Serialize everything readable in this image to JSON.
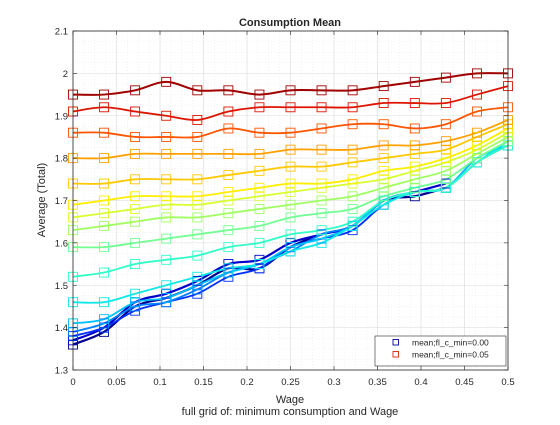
{
  "figure": {
    "footer": "full grid of: minimum consumption and Wage"
  },
  "chart_data": {
    "type": "line",
    "title": "Consumption Mean",
    "xlabel": "Wage",
    "ylabel": "Average (Total)",
    "xlim": [
      0,
      0.5
    ],
    "ylim": [
      1.3,
      2.1
    ],
    "xticks": [
      0,
      0.05,
      0.1,
      0.15,
      0.2,
      0.25,
      0.3,
      0.35,
      0.4,
      0.45,
      0.5
    ],
    "xtick_labels": [
      "0",
      "0.05",
      "0.1",
      "0.15",
      "0.2",
      "0.25",
      "0.3",
      "0.35",
      "0.4",
      "0.45",
      "0.5"
    ],
    "yticks": [
      1.3,
      1.4,
      1.5,
      1.6,
      1.7,
      1.8,
      1.9,
      2.0,
      2.1
    ],
    "ytick_labels": [
      "1.3",
      "1.4",
      "1.5",
      "1.6",
      "1.7",
      "1.8",
      "1.9",
      "2",
      "2.1"
    ],
    "grid": true,
    "minor_grid": true,
    "legend_position": "bottom-right",
    "legend": [
      {
        "label": "mean;fl_c_min=0.00",
        "color": "#0000aa"
      },
      {
        "label": "mean;fl_c_min=0.05",
        "color": "#dd2200"
      }
    ],
    "x": [
      0,
      0.0357,
      0.0714,
      0.1071,
      0.1429,
      0.1786,
      0.2143,
      0.25,
      0.2857,
      0.3214,
      0.3571,
      0.3929,
      0.4286,
      0.4643,
      0.5
    ],
    "series": [
      {
        "color": "#00008f",
        "width": 2.2,
        "values": [
          1.36,
          1.39,
          1.45,
          1.47,
          1.5,
          1.54,
          1.54,
          1.59,
          1.62,
          1.64,
          1.7,
          1.71,
          1.73,
          null,
          null
        ]
      },
      {
        "color": "#0000cc",
        "width": 2.2,
        "values": [
          1.37,
          1.4,
          1.46,
          1.48,
          1.51,
          1.55,
          1.56,
          1.6,
          1.62,
          1.64,
          1.7,
          1.72,
          1.74,
          null,
          null
        ]
      },
      {
        "color": "#0030ff",
        "width": 1.8,
        "values": [
          1.38,
          1.4,
          1.44,
          1.46,
          1.48,
          1.52,
          1.54,
          1.59,
          1.61,
          1.63,
          1.69,
          1.72,
          1.73,
          1.79,
          1.83
        ]
      },
      {
        "color": "#0080ff",
        "width": 1.8,
        "values": [
          1.39,
          1.41,
          1.45,
          1.46,
          1.49,
          1.53,
          1.55,
          1.58,
          1.62,
          1.64,
          1.7,
          1.72,
          1.73,
          1.8,
          1.83
        ]
      },
      {
        "color": "#00c0ff",
        "width": 1.8,
        "values": [
          1.41,
          1.42,
          1.46,
          1.47,
          1.5,
          1.53,
          1.55,
          1.59,
          1.61,
          1.64,
          1.7,
          1.72,
          1.73,
          1.8,
          1.83
        ]
      },
      {
        "color": "#10e8e8",
        "width": 1.8,
        "values": [
          1.46,
          1.46,
          1.48,
          1.5,
          1.52,
          1.54,
          1.55,
          1.58,
          1.6,
          1.64,
          1.69,
          1.72,
          1.73,
          1.79,
          1.84
        ]
      },
      {
        "color": "#30ffc8",
        "width": 1.8,
        "values": [
          1.52,
          1.53,
          1.55,
          1.56,
          1.57,
          1.59,
          1.6,
          1.62,
          1.63,
          1.65,
          1.7,
          1.72,
          1.73,
          1.79,
          1.83
        ]
      },
      {
        "color": "#70ff90",
        "width": 1.8,
        "values": [
          1.59,
          1.59,
          1.6,
          1.61,
          1.62,
          1.63,
          1.64,
          1.66,
          1.67,
          1.68,
          1.71,
          1.73,
          1.75,
          1.8,
          1.84
        ]
      },
      {
        "color": "#a0ff60",
        "width": 1.8,
        "values": [
          1.63,
          1.64,
          1.65,
          1.66,
          1.66,
          1.67,
          1.68,
          1.69,
          1.7,
          1.71,
          1.73,
          1.75,
          1.77,
          1.81,
          1.85
        ]
      },
      {
        "color": "#d8ff30",
        "width": 1.8,
        "values": [
          1.66,
          1.67,
          1.68,
          1.69,
          1.69,
          1.7,
          1.71,
          1.72,
          1.73,
          1.74,
          1.75,
          1.77,
          1.79,
          1.82,
          1.86
        ]
      },
      {
        "color": "#ffee00",
        "width": 1.8,
        "values": [
          1.69,
          1.7,
          1.71,
          1.71,
          1.71,
          1.72,
          1.73,
          1.74,
          1.74,
          1.75,
          1.77,
          1.78,
          1.8,
          1.83,
          1.87
        ]
      },
      {
        "color": "#ffc800",
        "width": 1.8,
        "values": [
          1.74,
          1.74,
          1.75,
          1.75,
          1.75,
          1.76,
          1.77,
          1.78,
          1.78,
          1.79,
          1.8,
          1.81,
          1.82,
          1.85,
          1.88
        ]
      },
      {
        "color": "#ffa000",
        "width": 1.8,
        "values": [
          1.8,
          1.8,
          1.81,
          1.81,
          1.81,
          1.81,
          1.81,
          1.82,
          1.82,
          1.82,
          1.83,
          1.83,
          1.84,
          1.86,
          1.89
        ]
      },
      {
        "color": "#ff5500",
        "width": 1.8,
        "values": [
          1.86,
          1.86,
          1.85,
          1.85,
          1.85,
          1.87,
          1.86,
          1.86,
          1.87,
          1.88,
          1.88,
          1.87,
          1.88,
          1.91,
          1.92
        ]
      },
      {
        "color": "#dd1500",
        "width": 1.8,
        "values": [
          1.91,
          1.92,
          1.91,
          1.9,
          1.89,
          1.91,
          1.92,
          1.92,
          1.92,
          1.92,
          1.93,
          1.93,
          1.93,
          1.95,
          1.97
        ]
      },
      {
        "color": "#a00000",
        "width": 2.0,
        "values": [
          1.95,
          1.95,
          1.96,
          1.98,
          1.96,
          1.96,
          1.95,
          1.96,
          1.96,
          1.96,
          1.97,
          1.98,
          1.99,
          2.0,
          2.0
        ]
      }
    ]
  }
}
